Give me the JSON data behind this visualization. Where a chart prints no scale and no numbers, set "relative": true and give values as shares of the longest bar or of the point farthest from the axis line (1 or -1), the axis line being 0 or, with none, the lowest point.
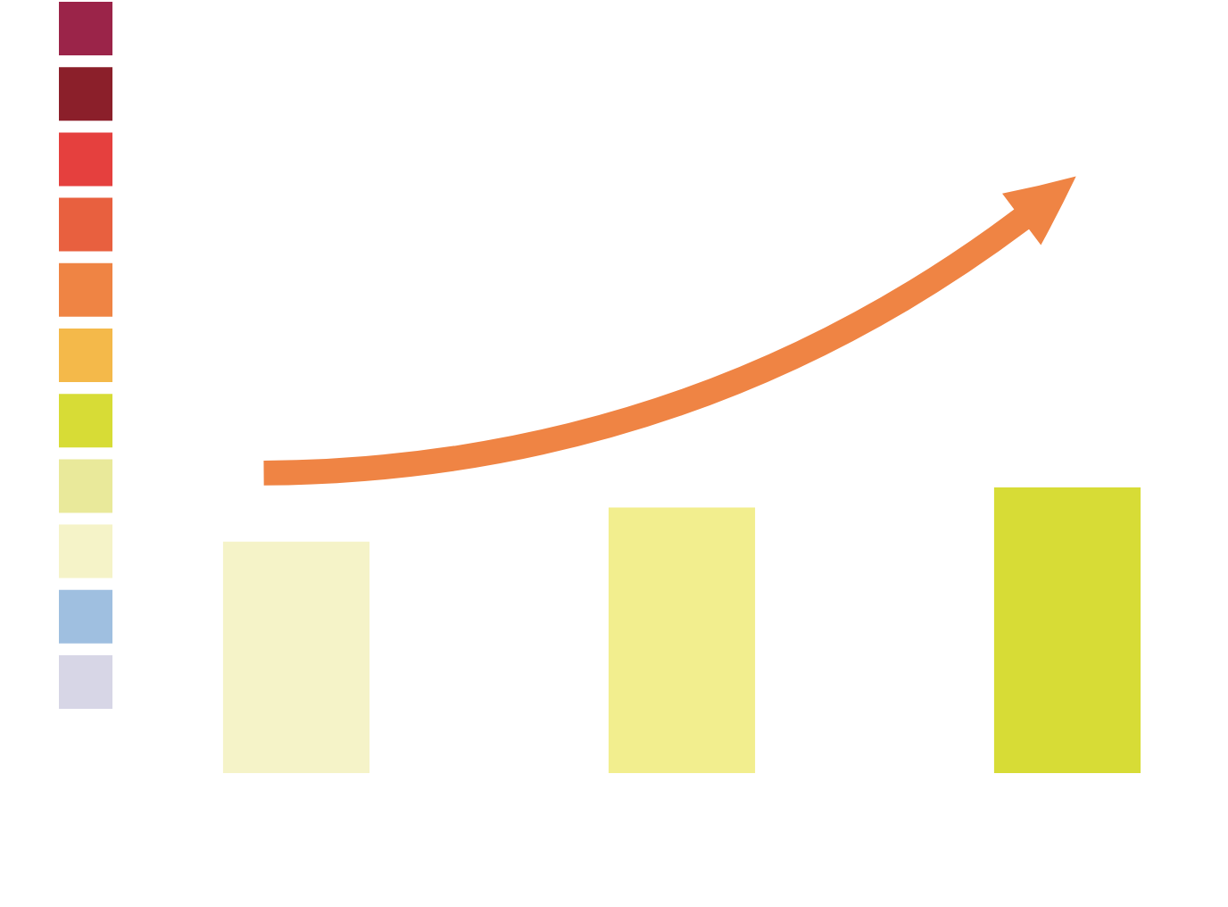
{
  "chart_data": {
    "type": "bar",
    "relative": true,
    "categories": [
      null,
      null,
      null
    ],
    "values": [
      0.81,
      0.93,
      1
    ],
    "colors": [
      "#f5f3c8",
      "#f2ee8e",
      "#d7dc36"
    ]
  }
}
